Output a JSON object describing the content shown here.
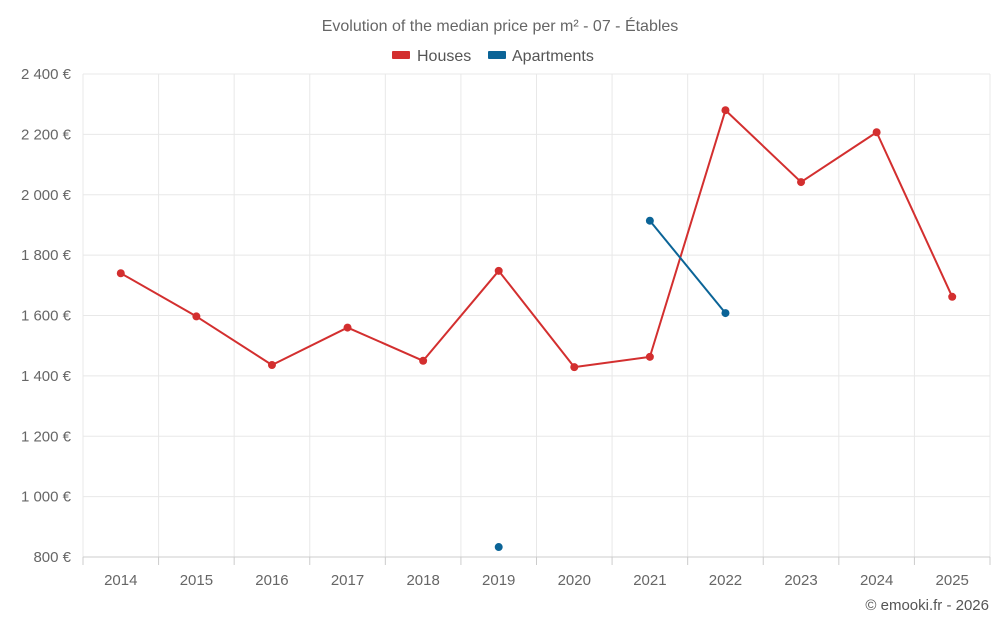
{
  "chart_data": {
    "type": "line",
    "title": "Evolution of the median price per m² - 07 - Étables",
    "categories": [
      "2014",
      "2015",
      "2016",
      "2017",
      "2018",
      "2019",
      "2020",
      "2021",
      "2022",
      "2023",
      "2024",
      "2025"
    ],
    "series": [
      {
        "name": "Houses",
        "color": "#d32f2f",
        "values": [
          1740,
          1597,
          1436,
          1560,
          1450,
          1748,
          1429,
          1463,
          2280,
          2042,
          2207,
          1662
        ]
      },
      {
        "name": "Apartments",
        "color": "#0b6497",
        "values": [
          null,
          null,
          null,
          null,
          null,
          833,
          null,
          1914,
          1608,
          null,
          null,
          null
        ]
      }
    ],
    "ylim": [
      800,
      2400
    ],
    "yticks": [
      800,
      1000,
      1200,
      1400,
      1600,
      1800,
      2000,
      2200,
      2400
    ],
    "ytick_labels": [
      "800 €",
      "1 000 €",
      "1 200 €",
      "1 400 €",
      "1 600 €",
      "1 800 €",
      "2 000 €",
      "2 200 €",
      "2 400 €"
    ],
    "grid": true,
    "legend_position": "top-center",
    "credit": "© emooki.fr - 2026"
  }
}
